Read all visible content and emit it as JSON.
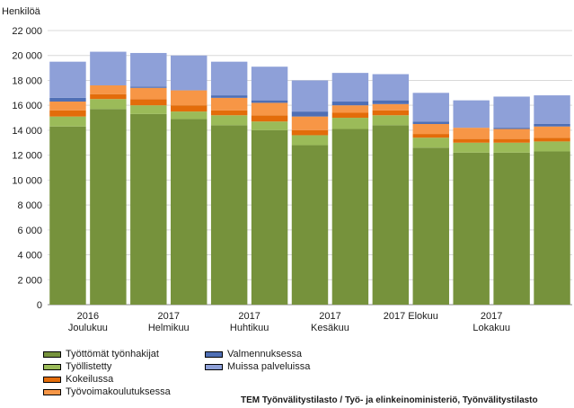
{
  "chart_data": {
    "type": "bar",
    "stacked": true,
    "ylabel": "Henkilöä",
    "ylim": [
      0,
      22000
    ],
    "yticks": [
      0,
      2000,
      4000,
      6000,
      8000,
      10000,
      12000,
      14000,
      16000,
      18000,
      20000,
      22000
    ],
    "ytick_labels": [
      "0",
      "2 000",
      "4 000",
      "6 000",
      "8 000",
      "10 000",
      "12 000",
      "14 000",
      "16 000",
      "18 000",
      "20 000",
      "22 000"
    ],
    "x_labels": [
      {
        "index": 1,
        "lines": [
          "2016",
          "Joulukuu"
        ]
      },
      {
        "index": 3,
        "lines": [
          "2017",
          "Helmikuu"
        ]
      },
      {
        "index": 5,
        "lines": [
          "2017",
          "Huhtikuu"
        ]
      },
      {
        "index": 7,
        "lines": [
          "2017",
          "Kesäkuu"
        ]
      },
      {
        "index": 9,
        "lines": [
          "2017 Elokuu"
        ]
      },
      {
        "index": 11,
        "lines": [
          "2017",
          "Lokakuu"
        ]
      }
    ],
    "grid": true,
    "series": [
      {
        "name": "Työttömät työnhakijat",
        "color": "#76923c",
        "values": [
          14300,
          15700,
          15300,
          14900,
          14400,
          14000,
          12800,
          14100,
          14400,
          12600,
          12200,
          12200,
          12300
        ]
      },
      {
        "name": "Työllistetty",
        "color": "#9bbb59",
        "values": [
          800,
          800,
          700,
          600,
          800,
          700,
          800,
          900,
          800,
          800,
          800,
          800,
          800
        ]
      },
      {
        "name": "Kokeilussa",
        "color": "#e36c0a",
        "values": [
          500,
          400,
          500,
          500,
          400,
          500,
          400,
          400,
          400,
          300,
          300,
          300,
          300
        ]
      },
      {
        "name": "Työvoimakoulutuksessa",
        "color": "#f79646",
        "values": [
          700,
          700,
          900,
          1200,
          1000,
          1000,
          1100,
          600,
          500,
          800,
          900,
          800,
          900
        ]
      },
      {
        "name": "Valmennuksessa",
        "color": "#4f6fb5",
        "values": [
          300,
          0,
          100,
          0,
          200,
          200,
          400,
          300,
          300,
          200,
          0,
          100,
          200
        ]
      },
      {
        "name": "Muissa palveluissa",
        "color": "#8ea0d8",
        "values": [
          2900,
          2700,
          2700,
          2800,
          2700,
          2700,
          2500,
          2300,
          2100,
          2300,
          2200,
          2500,
          2300
        ]
      }
    ],
    "legend_position": "bottom"
  },
  "source_text": "TEM Työnvälitystilasto / Työ- ja elinkeinoministeriö, Työnvälitystilasto"
}
